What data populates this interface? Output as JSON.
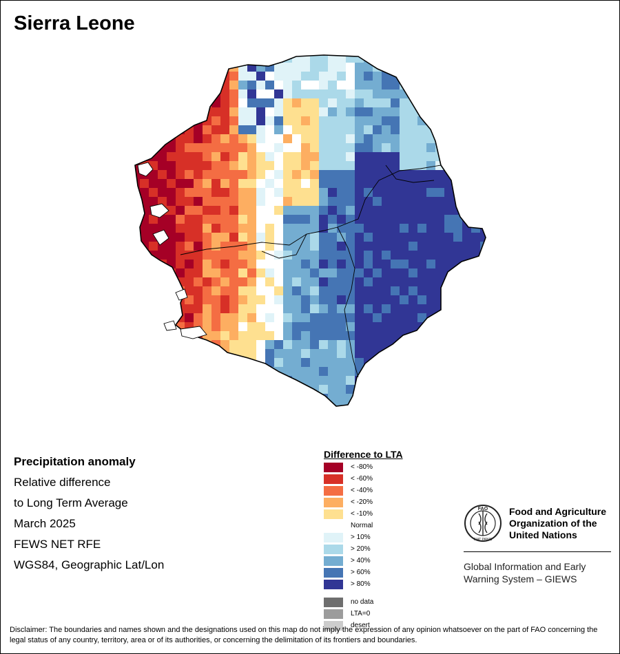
{
  "title": "Sierra Leone",
  "info": {
    "heading": "Precipitation anomaly",
    "line1": "Relative difference",
    "line2": "to Long Term Average",
    "period": "March 2025",
    "source": "FEWS NET RFE",
    "projection": "WGS84, Geographic Lat/Lon"
  },
  "legend": {
    "title": "Difference to LTA",
    "classes": [
      {
        "label": "< -80%",
        "color": "#a50026"
      },
      {
        "label": "< -60%",
        "color": "#d73027"
      },
      {
        "label": "< -40%",
        "color": "#f46d43"
      },
      {
        "label": "< -20%",
        "color": "#fdae61"
      },
      {
        "label": "< -10%",
        "color": "#fee090"
      },
      {
        "label": "Normal",
        "color": "#ffffff"
      },
      {
        "label": "> 10%",
        "color": "#e0f3f8"
      },
      {
        "label": "> 20%",
        "color": "#abd9e9"
      },
      {
        "label": "> 40%",
        "color": "#74add1"
      },
      {
        "label": "> 60%",
        "color": "#4575b4"
      },
      {
        "label": "> 80%",
        "color": "#313695"
      }
    ],
    "extra": [
      {
        "label": "no data",
        "color": "#6e6e6e"
      },
      {
        "label": "LTA=0",
        "color": "#9c9c9c"
      },
      {
        "label": "desert",
        "color": "#cccccc"
      }
    ]
  },
  "organization": {
    "name_line1": "Food and Agriculture",
    "name_line2": "Organization of the",
    "name_line3": "United Nations",
    "logo_text": "FAO",
    "logo_motto": "FIAT PANIS",
    "system_line1": "Global Information and Early",
    "system_line2": "Warning System – GIEWS"
  },
  "disclaimer": "Disclaimer: The boundaries and names shown and the designations used on this map do not imply the expression of any opinion whatsoever on the part of FAO concerning the legal status of any country, territory, area or of its authorities, or concerning the delimitation of its frontiers and boundaries."
}
